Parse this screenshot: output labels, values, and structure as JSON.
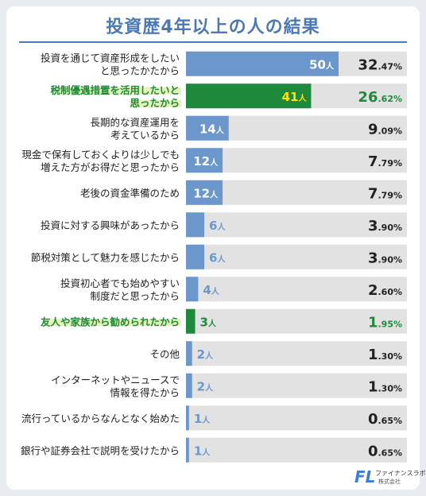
{
  "chart_data": {
    "type": "bar",
    "title": "投資歴4年以上の人の結果",
    "count_suffix": "人",
    "pct_suffix": "%",
    "max_value": 50,
    "colors": {
      "normal": "#6b97cc",
      "highlight": "#1f8a3e",
      "track": "#e2e2e2",
      "title": "#4a79b5",
      "highlight_bg": "#e5f2b8"
    },
    "categories": [
      {
        "label": [
          "投資を通じて資産形成をしたい",
          "と思ったかたから"
        ],
        "count": 50,
        "pct_int": "32",
        "pct_dec": ".47",
        "highlight": false
      },
      {
        "label": [
          "税制優遇措置を活用したいと",
          "思ったから"
        ],
        "count": 41,
        "pct_int": "26",
        "pct_dec": ".62",
        "highlight": true
      },
      {
        "label": [
          "長期的な資産運用を",
          "考えているから"
        ],
        "count": 14,
        "pct_int": "9",
        "pct_dec": ".09",
        "highlight": false
      },
      {
        "label": [
          "現金で保有しておくよりは少しでも",
          "増えた方がお得だと思ったから"
        ],
        "count": 12,
        "pct_int": "7",
        "pct_dec": ".79",
        "highlight": false
      },
      {
        "label": [
          "老後の資金準備のため"
        ],
        "count": 12,
        "pct_int": "7",
        "pct_dec": ".79",
        "highlight": false
      },
      {
        "label": [
          "投資に対する興味があったから"
        ],
        "count": 6,
        "pct_int": "3",
        "pct_dec": ".90",
        "highlight": false
      },
      {
        "label": [
          "節税対策として魅力を感じたから"
        ],
        "count": 6,
        "pct_int": "3",
        "pct_dec": ".90",
        "highlight": false
      },
      {
        "label": [
          "投資初心者でも始めやすい",
          "制度だと思ったから"
        ],
        "count": 4,
        "pct_int": "2",
        "pct_dec": ".60",
        "highlight": false
      },
      {
        "label": [
          "友人や家族から勧められたから"
        ],
        "count": 3,
        "pct_int": "1",
        "pct_dec": ".95",
        "highlight": true
      },
      {
        "label": [
          "その他"
        ],
        "count": 2,
        "pct_int": "1",
        "pct_dec": ".30",
        "highlight": false
      },
      {
        "label": [
          "インターネットやニュースで",
          "情報を得たから"
        ],
        "count": 2,
        "pct_int": "1",
        "pct_dec": ".30",
        "highlight": false
      },
      {
        "label": [
          "流行っているからなんとなく始めた"
        ],
        "count": 1,
        "pct_int": "0",
        "pct_dec": ".65",
        "highlight": false
      },
      {
        "label": [
          "銀行や証券会社で説明を受けたから"
        ],
        "count": 1,
        "pct_int": "0",
        "pct_dec": ".65",
        "highlight": false
      }
    ]
  },
  "logo": {
    "mark": "FL",
    "name": "ファイナンスラボ",
    "company": "株式会社"
  }
}
